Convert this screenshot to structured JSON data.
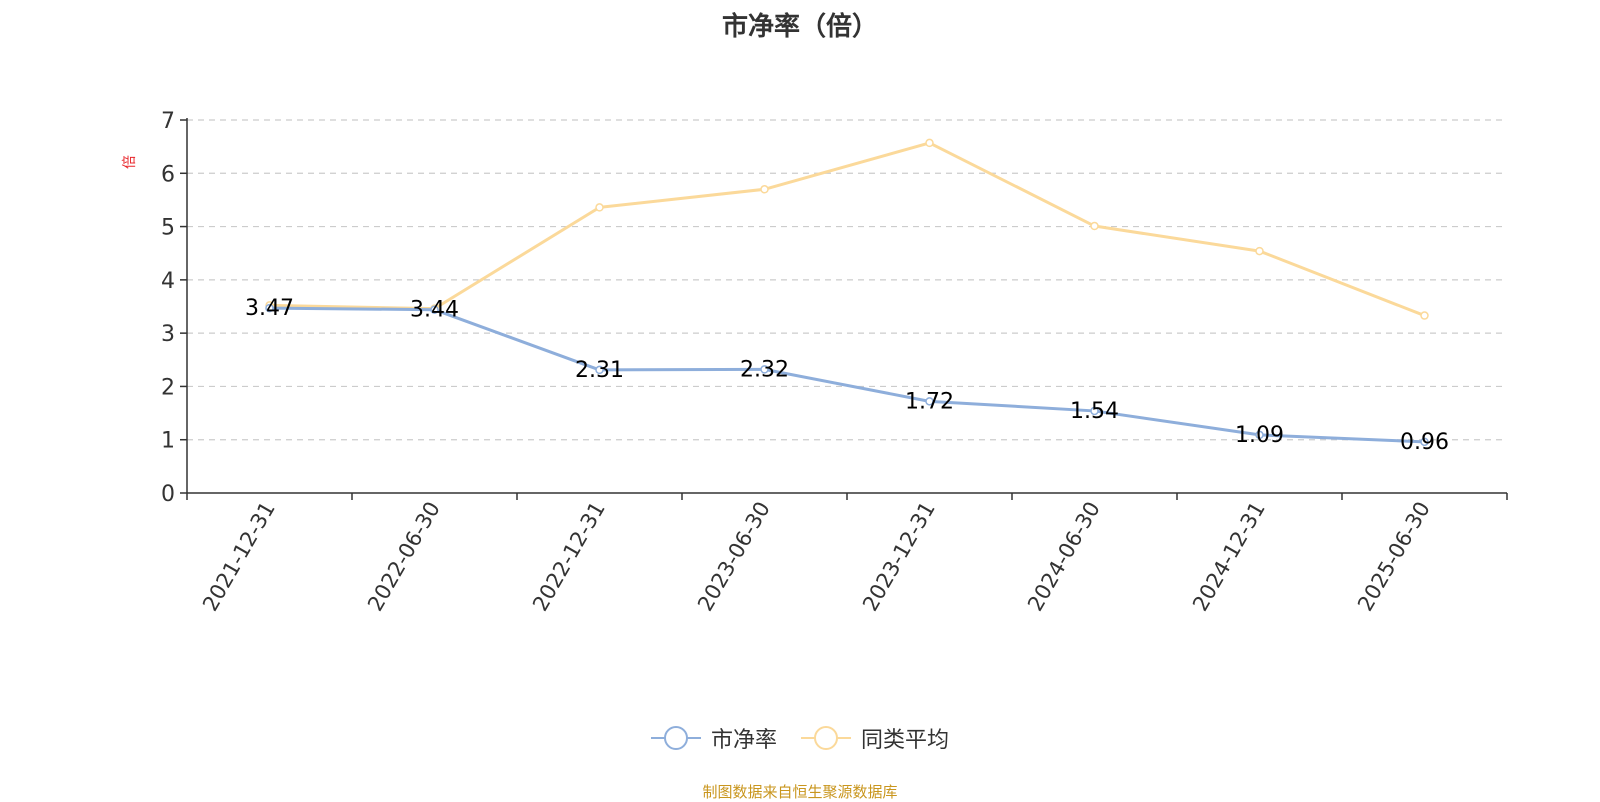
{
  "chart_data": {
    "type": "line",
    "title": "市净率（倍）",
    "ylabel": "倍",
    "categories": [
      "2021-12-31",
      "2022-06-30",
      "2022-12-31",
      "2023-06-30",
      "2023-12-31",
      "2024-06-30",
      "2024-12-31",
      "2025-06-30"
    ],
    "ylim": [
      0,
      7
    ],
    "yticks": [
      0,
      1,
      2,
      3,
      4,
      5,
      6,
      7
    ],
    "grid": true,
    "legend_position": "bottom",
    "series": [
      {
        "name": "市净率",
        "color": "#8eaedb",
        "values": [
          3.47,
          3.44,
          2.31,
          2.32,
          1.72,
          1.54,
          1.09,
          0.96
        ],
        "data_labels": [
          "3.47",
          "3.44",
          "2.31",
          "2.32",
          "1.72",
          "1.54",
          "1.09",
          "0.96"
        ]
      },
      {
        "name": "同类平均",
        "color": "#fbd99a",
        "values": [
          3.52,
          3.46,
          5.36,
          5.7,
          6.57,
          5.01,
          4.54,
          3.33
        ]
      }
    ]
  },
  "legend": {
    "items": [
      "市净率",
      "同类平均"
    ]
  },
  "source_note": "制图数据来自恒生聚源数据库"
}
